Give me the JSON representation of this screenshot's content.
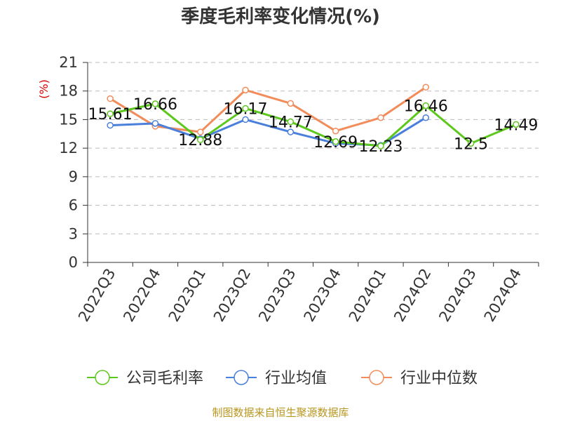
{
  "chart_data": {
    "type": "line",
    "title": "季度毛利率变化情况(%)",
    "ylabel": "(%)",
    "categories": [
      "2022Q3",
      "2022Q4",
      "2023Q1",
      "2023Q2",
      "2023Q3",
      "2023Q4",
      "2024Q1",
      "2024Q2",
      "2024Q3",
      "2024Q4"
    ],
    "ylim": [
      0,
      21
    ],
    "yticks": [
      "0",
      "3",
      "6",
      "9",
      "12",
      "15",
      "18",
      "21"
    ],
    "grid": true,
    "legend_position": "bottom",
    "series": [
      {
        "name": "公司毛利率",
        "color": "#5cc81c",
        "values": [
          15.61,
          16.66,
          12.88,
          16.17,
          14.77,
          12.69,
          12.23,
          16.46,
          12.5,
          14.49
        ],
        "labels": [
          "15.61",
          "16.66",
          "12.88",
          "16.17",
          "14.77",
          "12.69",
          "12.23",
          "16.46",
          "12.5",
          "14.49"
        ]
      },
      {
        "name": "行业均值",
        "color": "#4a7fdb",
        "values": [
          14.4,
          14.6,
          13.0,
          15.0,
          13.7,
          12.5,
          12.3,
          15.2,
          null,
          null
        ]
      },
      {
        "name": "行业中位数",
        "color": "#f28c5a",
        "values": [
          17.2,
          14.3,
          13.7,
          18.1,
          16.7,
          13.8,
          15.2,
          18.4,
          null,
          null
        ]
      }
    ]
  },
  "source": "制图数据来自恒生聚源数据库"
}
